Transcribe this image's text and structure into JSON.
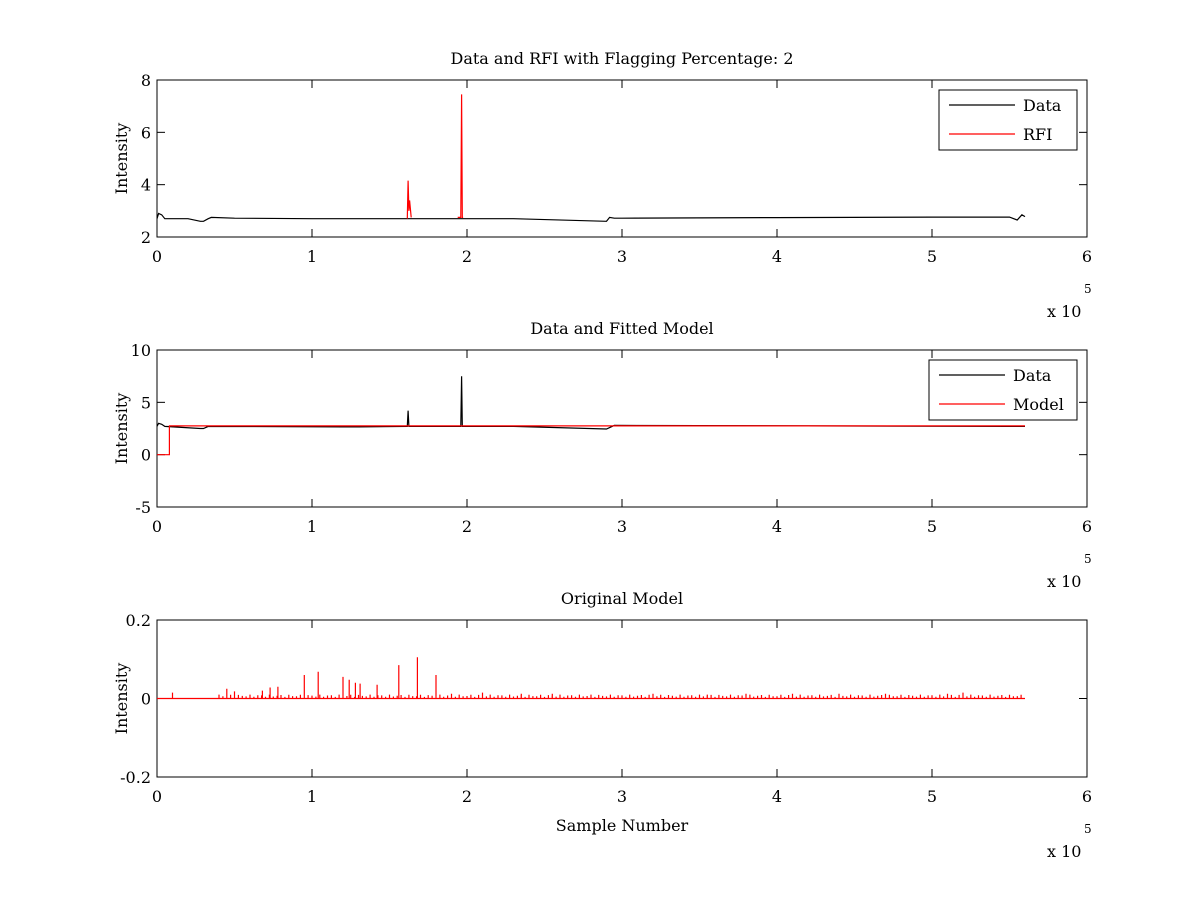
{
  "chart_data": [
    {
      "type": "line",
      "title": "Data and RFI with Flagging Percentage: 2",
      "xlabel": "",
      "ylabel": "Intensity",
      "xlim": [
        0,
        6
      ],
      "ylim": [
        2,
        8
      ],
      "xticks": [
        "0",
        "1",
        "2",
        "3",
        "4",
        "5",
        "6"
      ],
      "yticks": [
        "2",
        "4",
        "6",
        "8"
      ],
      "x_multiplier": {
        "base": "x 10",
        "exponent": "5"
      },
      "legend": {
        "position": "top-right",
        "entries": [
          {
            "name": "Data",
            "color": "#000000"
          },
          {
            "name": "RFI",
            "color": "#ff0000"
          }
        ]
      },
      "series": [
        {
          "name": "Data",
          "color": "#000000",
          "x": [
            0,
            0.01,
            0.03,
            0.05,
            0.2,
            0.28,
            0.3,
            0.33,
            0.35,
            0.5,
            1.0,
            1.6,
            1.62,
            1.95,
            2.3,
            2.9,
            2.92,
            2.95,
            3.0,
            4.0,
            5.0,
            5.5,
            5.55,
            5.58,
            5.6
          ],
          "y": [
            2.7,
            2.9,
            2.85,
            2.7,
            2.7,
            2.6,
            2.6,
            2.7,
            2.75,
            2.72,
            2.7,
            2.7,
            2.7,
            2.7,
            2.7,
            2.6,
            2.75,
            2.72,
            2.72,
            2.74,
            2.76,
            2.76,
            2.65,
            2.85,
            2.78
          ]
        },
        {
          "name": "RFI",
          "color": "#ff0000",
          "x": [
            1.615,
            1.62,
            1.625,
            1.63,
            1.64,
            1.64,
            1.94,
            1.96,
            1.965,
            1.97,
            1.975
          ],
          "y": [
            2.7,
            4.15,
            3.0,
            3.4,
            2.75,
            null,
            2.75,
            2.75,
            7.45,
            2.75,
            2.75
          ]
        }
      ]
    },
    {
      "type": "line",
      "title": "Data and Fitted Model",
      "xlabel": "",
      "ylabel": "Intensity",
      "xlim": [
        0,
        6
      ],
      "ylim": [
        -5,
        10
      ],
      "xticks": [
        "0",
        "1",
        "2",
        "3",
        "4",
        "5",
        "6"
      ],
      "yticks": [
        "-5",
        "0",
        "5",
        "10"
      ],
      "x_multiplier": {
        "base": "x 10",
        "exponent": "5"
      },
      "legend": {
        "position": "top-right",
        "entries": [
          {
            "name": "Data",
            "color": "#000000"
          },
          {
            "name": "Model",
            "color": "#ff0000"
          }
        ]
      },
      "series": [
        {
          "name": "Data",
          "color": "#000000",
          "x": [
            0,
            0.01,
            0.03,
            0.05,
            0.28,
            0.3,
            0.33,
            1.2,
            1.3,
            1.615,
            1.62,
            1.625,
            1.96,
            1.965,
            1.97,
            2.3,
            2.9,
            2.95,
            5.5,
            5.6
          ],
          "y": [
            2.7,
            3.0,
            2.9,
            2.7,
            2.5,
            2.5,
            2.7,
            2.65,
            2.65,
            2.7,
            4.2,
            2.7,
            2.7,
            7.5,
            2.7,
            2.7,
            2.45,
            2.8,
            2.7,
            2.7
          ]
        },
        {
          "name": "Model",
          "color": "#ff0000",
          "x": [
            0,
            0.08,
            0.08,
            5.6
          ],
          "y": [
            0,
            0,
            2.75,
            2.75
          ]
        }
      ]
    },
    {
      "type": "line",
      "title": "Original Model",
      "xlabel": "Sample Number",
      "ylabel": "Intensity",
      "xlim": [
        0,
        6
      ],
      "ylim": [
        -0.2,
        0.2
      ],
      "xticks": [
        "0",
        "1",
        "2",
        "3",
        "4",
        "5",
        "6"
      ],
      "yticks": [
        "-0.2",
        "0",
        "0.2"
      ],
      "x_multiplier": {
        "base": "x 10",
        "exponent": "5"
      },
      "series": [
        {
          "name": "",
          "color": "#ff0000",
          "baseline": 0,
          "x_end": 5.6,
          "spikes": [
            [
              0.1,
              0.015
            ],
            [
              0.45,
              0.025
            ],
            [
              0.5,
              0.018
            ],
            [
              0.68,
              0.02
            ],
            [
              0.73,
              0.028
            ],
            [
              0.78,
              0.03
            ],
            [
              0.95,
              0.06
            ],
            [
              1.04,
              0.068
            ],
            [
              1.2,
              0.055
            ],
            [
              1.24,
              0.048
            ],
            [
              1.28,
              0.04
            ],
            [
              1.31,
              0.038
            ],
            [
              1.42,
              0.035
            ],
            [
              1.56,
              0.085
            ],
            [
              1.68,
              0.105
            ],
            [
              1.8,
              0.06
            ],
            [
              1.9,
              0.012
            ],
            [
              2.1,
              0.015
            ],
            [
              2.35,
              0.012
            ],
            [
              2.55,
              0.012
            ],
            [
              2.8,
              0.01
            ],
            [
              3.2,
              0.012
            ],
            [
              3.55,
              0.01
            ],
            [
              3.8,
              0.012
            ],
            [
              4.1,
              0.012
            ],
            [
              4.4,
              0.012
            ],
            [
              4.7,
              0.012
            ],
            [
              5.1,
              0.012
            ],
            [
              5.2,
              0.015
            ]
          ]
        }
      ]
    }
  ]
}
